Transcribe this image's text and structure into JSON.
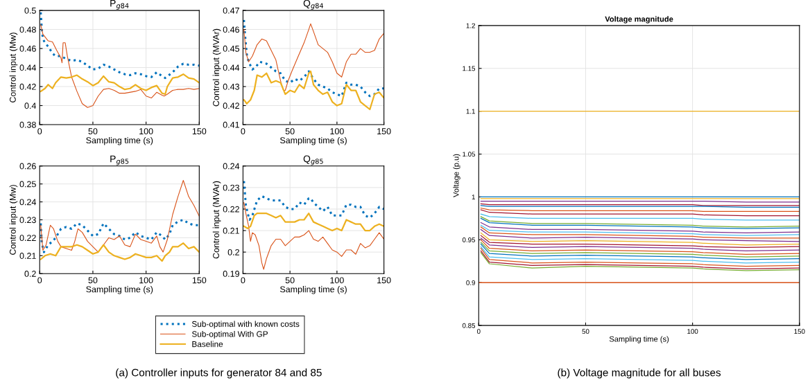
{
  "chart_data": [
    {
      "type": "line",
      "title": "P$_{g84}$",
      "xlabel": "Sampling time (s)",
      "ylabel": "Control input (Mw)",
      "xlim": [
        0,
        150
      ],
      "xticks": [
        0,
        50,
        100,
        150
      ],
      "ylim": [
        0.38,
        0.5
      ],
      "yticks": [
        0.38,
        0.4,
        0.42,
        0.44,
        0.46,
        0.48,
        0.5
      ],
      "grid": true,
      "legend": "bottom",
      "annotations": [
        "(a) Controller inputs for generator 84 and 85"
      ],
      "series": [
        {
          "name": "Sub-optimal with known costs",
          "color": "#0072bd",
          "line_style": "dotted",
          "x": [
            1,
            2,
            3,
            5,
            8,
            12,
            15,
            20,
            25,
            30,
            35,
            40,
            45,
            50,
            55,
            60,
            65,
            70,
            75,
            80,
            85,
            90,
            95,
            100,
            105,
            110,
            115,
            118,
            125,
            130,
            135,
            140,
            145,
            150
          ],
          "values": [
            0.498,
            0.48,
            0.47,
            0.466,
            0.462,
            0.455,
            0.452,
            0.452,
            0.449,
            0.447,
            0.448,
            0.446,
            0.442,
            0.438,
            0.439,
            0.443,
            0.441,
            0.438,
            0.435,
            0.433,
            0.432,
            0.434,
            0.433,
            0.431,
            0.43,
            0.435,
            0.431,
            0.429,
            0.435,
            0.441,
            0.444,
            0.443,
            0.443,
            0.442
          ]
        },
        {
          "name": "Sub-optimal With GP",
          "color": "#d95319",
          "line_style": "solid",
          "x": [
            1,
            3,
            8,
            12,
            16,
            20,
            21,
            22,
            24,
            26,
            30,
            35,
            40,
            45,
            50,
            55,
            60,
            65,
            70,
            75,
            80,
            90,
            95,
            100,
            105,
            110,
            115,
            117,
            120,
            125,
            130,
            135,
            140,
            145,
            150
          ],
          "values": [
            0.485,
            0.475,
            0.468,
            0.467,
            0.458,
            0.45,
            0.445,
            0.466,
            0.466,
            0.452,
            0.43,
            0.415,
            0.402,
            0.398,
            0.4,
            0.41,
            0.417,
            0.418,
            0.416,
            0.413,
            0.413,
            0.415,
            0.417,
            0.41,
            0.408,
            0.414,
            0.411,
            0.41,
            0.412,
            0.416,
            0.417,
            0.417,
            0.418,
            0.417,
            0.418
          ]
        },
        {
          "name": "Baseline",
          "color": "#edb120",
          "line_style": "solid",
          "x": [
            1,
            5,
            8,
            12,
            15,
            20,
            25,
            30,
            35,
            40,
            45,
            50,
            55,
            60,
            65,
            70,
            75,
            80,
            85,
            90,
            95,
            100,
            105,
            110,
            115,
            118,
            120,
            125,
            130,
            135,
            140,
            145,
            150
          ],
          "values": [
            0.415,
            0.418,
            0.422,
            0.418,
            0.424,
            0.43,
            0.429,
            0.43,
            0.432,
            0.428,
            0.425,
            0.421,
            0.424,
            0.431,
            0.425,
            0.424,
            0.42,
            0.417,
            0.418,
            0.422,
            0.418,
            0.416,
            0.419,
            0.421,
            0.413,
            0.412,
            0.42,
            0.429,
            0.43,
            0.433,
            0.429,
            0.428,
            0.424
          ]
        }
      ]
    },
    {
      "type": "line",
      "title": "Q$_{g84}$",
      "xlabel": "Sampling time (s)",
      "ylabel": "Control input (MVAr)",
      "xlim": [
        0,
        150
      ],
      "xticks": [
        0,
        50,
        100,
        150
      ],
      "ylim": [
        0.41,
        0.47
      ],
      "yticks": [
        0.41,
        0.42,
        0.43,
        0.44,
        0.45,
        0.46,
        0.47
      ],
      "grid": true,
      "series": [
        {
          "color": "#0072bd",
          "line_style": "dotted",
          "x": [
            1,
            2,
            4,
            6,
            10,
            13,
            18,
            25,
            30,
            35,
            40,
            45,
            50,
            55,
            60,
            65,
            70,
            75,
            80,
            85,
            90,
            95,
            100,
            105,
            110,
            115,
            120,
            125,
            130,
            135,
            140,
            145,
            150
          ],
          "values": [
            0.465,
            0.458,
            0.447,
            0.443,
            0.439,
            0.44,
            0.443,
            0.442,
            0.44,
            0.438,
            0.437,
            0.433,
            0.432,
            0.434,
            0.433,
            0.435,
            0.438,
            0.434,
            0.431,
            0.43,
            0.429,
            0.427,
            0.426,
            0.425,
            0.432,
            0.431,
            0.431,
            0.43,
            0.427,
            0.425,
            0.426,
            0.429,
            0.429
          ]
        },
        {
          "color": "#d95319",
          "line_style": "solid",
          "x": [
            1,
            3,
            6,
            10,
            15,
            20,
            25,
            30,
            35,
            40,
            43,
            45,
            48,
            52,
            58,
            65,
            70,
            72,
            75,
            80,
            85,
            90,
            95,
            100,
            105,
            110,
            115,
            120,
            125,
            130,
            135,
            140,
            145,
            150
          ],
          "values": [
            0.46,
            0.448,
            0.443,
            0.446,
            0.452,
            0.455,
            0.454,
            0.449,
            0.444,
            0.433,
            0.428,
            0.428,
            0.433,
            0.438,
            0.445,
            0.453,
            0.46,
            0.463,
            0.459,
            0.452,
            0.45,
            0.448,
            0.443,
            0.437,
            0.435,
            0.443,
            0.447,
            0.447,
            0.45,
            0.448,
            0.448,
            0.449,
            0.455,
            0.458
          ]
        },
        {
          "color": "#edb120",
          "line_style": "solid",
          "x": [
            1,
            4,
            8,
            12,
            15,
            20,
            25,
            30,
            35,
            40,
            45,
            50,
            55,
            60,
            65,
            70,
            72,
            75,
            80,
            85,
            90,
            95,
            100,
            105,
            110,
            115,
            120,
            125,
            130,
            135,
            140,
            145,
            150
          ],
          "values": [
            0.423,
            0.421,
            0.423,
            0.428,
            0.436,
            0.435,
            0.437,
            0.432,
            0.433,
            0.432,
            0.426,
            0.428,
            0.427,
            0.431,
            0.429,
            0.437,
            0.438,
            0.431,
            0.428,
            0.426,
            0.427,
            0.422,
            0.42,
            0.421,
            0.431,
            0.428,
            0.428,
            0.422,
            0.42,
            0.418,
            0.426,
            0.427,
            0.424
          ]
        }
      ]
    },
    {
      "type": "line",
      "title": "P$_{g85}$",
      "xlabel": "Sampling time (s)",
      "ylabel": "Control input (Mw)",
      "xlim": [
        0,
        150
      ],
      "xticks": [
        0,
        50,
        100,
        150
      ],
      "ylim": [
        0.2,
        0.26
      ],
      "yticks": [
        0.2,
        0.21,
        0.22,
        0.23,
        0.24,
        0.25,
        0.26
      ],
      "grid": true,
      "series": [
        {
          "color": "#0072bd",
          "line_style": "dotted",
          "x": [
            1,
            2,
            4,
            8,
            12,
            15,
            20,
            25,
            30,
            35,
            40,
            45,
            50,
            55,
            60,
            65,
            70,
            75,
            80,
            85,
            90,
            95,
            100,
            105,
            110,
            115,
            118,
            122,
            125,
            130,
            135,
            140,
            145,
            150
          ],
          "values": [
            0.228,
            0.217,
            0.212,
            0.216,
            0.218,
            0.22,
            0.225,
            0.226,
            0.225,
            0.228,
            0.227,
            0.224,
            0.221,
            0.222,
            0.228,
            0.225,
            0.222,
            0.221,
            0.219,
            0.22,
            0.223,
            0.221,
            0.22,
            0.219,
            0.223,
            0.221,
            0.219,
            0.222,
            0.227,
            0.229,
            0.23,
            0.228,
            0.227,
            0.227
          ]
        },
        {
          "color": "#d95319",
          "line_style": "solid",
          "x": [
            1,
            3,
            6,
            10,
            13,
            17,
            20,
            25,
            30,
            33,
            36,
            40,
            45,
            50,
            55,
            60,
            65,
            70,
            75,
            80,
            85,
            90,
            95,
            100,
            105,
            110,
            113,
            116,
            120,
            125,
            130,
            135,
            140,
            145,
            150
          ],
          "values": [
            0.227,
            0.213,
            0.216,
            0.227,
            0.225,
            0.218,
            0.215,
            0.214,
            0.213,
            0.218,
            0.225,
            0.223,
            0.218,
            0.215,
            0.212,
            0.216,
            0.22,
            0.219,
            0.221,
            0.216,
            0.215,
            0.222,
            0.219,
            0.218,
            0.217,
            0.221,
            0.215,
            0.212,
            0.219,
            0.233,
            0.243,
            0.252,
            0.243,
            0.238,
            0.232
          ]
        },
        {
          "color": "#edb120",
          "line_style": "solid",
          "x": [
            1,
            5,
            10,
            15,
            20,
            25,
            30,
            35,
            40,
            45,
            50,
            55,
            60,
            65,
            70,
            75,
            80,
            85,
            90,
            95,
            100,
            105,
            110,
            115,
            118,
            122,
            125,
            130,
            135,
            140,
            145,
            150
          ],
          "values": [
            0.208,
            0.21,
            0.211,
            0.21,
            0.215,
            0.215,
            0.215,
            0.216,
            0.215,
            0.213,
            0.211,
            0.212,
            0.216,
            0.212,
            0.21,
            0.209,
            0.208,
            0.209,
            0.211,
            0.21,
            0.209,
            0.209,
            0.21,
            0.207,
            0.21,
            0.212,
            0.215,
            0.215,
            0.217,
            0.214,
            0.215,
            0.212
          ]
        }
      ]
    },
    {
      "type": "line",
      "title": "Q$_{g85}$",
      "xlabel": "Sampling time (s)",
      "ylabel": "Control input (MVAr)",
      "xlim": [
        0,
        150
      ],
      "xticks": [
        0,
        50,
        100,
        150
      ],
      "ylim": [
        0.19,
        0.24
      ],
      "yticks": [
        0.19,
        0.2,
        0.21,
        0.22,
        0.23,
        0.24
      ],
      "grid": true,
      "series": [
        {
          "color": "#0072bd",
          "line_style": "dotted",
          "x": [
            1,
            3,
            5,
            7,
            10,
            15,
            20,
            25,
            30,
            35,
            40,
            45,
            50,
            55,
            60,
            65,
            70,
            72,
            75,
            80,
            85,
            90,
            95,
            100,
            105,
            110,
            115,
            120,
            125,
            130,
            135,
            140,
            145,
            150
          ],
          "values": [
            0.233,
            0.222,
            0.218,
            0.215,
            0.217,
            0.224,
            0.226,
            0.225,
            0.224,
            0.224,
            0.224,
            0.221,
            0.22,
            0.22,
            0.223,
            0.222,
            0.225,
            0.225,
            0.223,
            0.221,
            0.219,
            0.221,
            0.217,
            0.217,
            0.217,
            0.222,
            0.222,
            0.221,
            0.221,
            0.217,
            0.216,
            0.218,
            0.221,
            0.22
          ]
        },
        {
          "color": "#d95319",
          "line_style": "solid",
          "x": [
            1,
            3,
            6,
            8,
            10,
            13,
            17,
            20,
            22,
            25,
            30,
            35,
            40,
            45,
            50,
            55,
            60,
            65,
            70,
            75,
            80,
            85,
            90,
            95,
            100,
            105,
            110,
            115,
            120,
            125,
            130,
            135,
            140,
            145,
            150
          ],
          "values": [
            0.223,
            0.218,
            0.212,
            0.205,
            0.209,
            0.208,
            0.203,
            0.195,
            0.192,
            0.197,
            0.203,
            0.206,
            0.206,
            0.203,
            0.205,
            0.207,
            0.207,
            0.208,
            0.21,
            0.206,
            0.205,
            0.207,
            0.204,
            0.201,
            0.2,
            0.198,
            0.201,
            0.201,
            0.199,
            0.204,
            0.202,
            0.203,
            0.206,
            0.209,
            0.206
          ]
        },
        {
          "color": "#edb120",
          "line_style": "solid",
          "x": [
            1,
            5,
            8,
            12,
            15,
            20,
            25,
            30,
            35,
            40,
            45,
            50,
            55,
            60,
            65,
            70,
            75,
            80,
            85,
            90,
            95,
            100,
            105,
            110,
            115,
            120,
            125,
            130,
            135,
            140,
            145,
            150
          ],
          "values": [
            0.212,
            0.211,
            0.212,
            0.217,
            0.218,
            0.218,
            0.218,
            0.217,
            0.216,
            0.217,
            0.214,
            0.214,
            0.214,
            0.215,
            0.215,
            0.218,
            0.214,
            0.213,
            0.212,
            0.211,
            0.21,
            0.211,
            0.21,
            0.215,
            0.214,
            0.213,
            0.213,
            0.21,
            0.21,
            0.212,
            0.213,
            0.212
          ]
        }
      ]
    },
    {
      "type": "line",
      "title": "Voltage magnitude",
      "xlabel": "Sampling time (s)",
      "ylabel": "Voltage (p.u)",
      "xlim": [
        0,
        150
      ],
      "xticks": [
        0,
        50,
        100,
        150
      ],
      "ylim": [
        0.85,
        1.2
      ],
      "yticks": [
        0.85,
        0.9,
        0.95,
        1,
        1.05,
        1.1,
        1.15,
        1.2
      ],
      "grid": true,
      "annotations": [
        "(b) Voltage magnitude for all buses"
      ],
      "ref_lines": [
        {
          "axis": "y",
          "value": 1.1,
          "color": "#edb120"
        },
        {
          "axis": "y",
          "value": 0.9,
          "color": "#d95319"
        }
      ],
      "x": [
        1,
        5,
        25,
        50,
        75,
        100,
        105,
        125,
        150
      ],
      "series": [
        {
          "color": "#0072bd",
          "values": [
            1.0,
            1.0,
            1.0,
            1.0,
            1.0,
            1.0,
            1.0,
            1.0,
            1.0
          ]
        },
        {
          "color": "#edb120",
          "values": [
            0.998,
            0.998,
            0.998,
            0.998,
            0.998,
            0.998,
            0.998,
            0.998,
            0.998
          ]
        },
        {
          "color": "#7e2f8e",
          "values": [
            0.995,
            0.995,
            0.995,
            0.995,
            0.995,
            0.995,
            0.995,
            0.994,
            0.994
          ]
        },
        {
          "color": "#a2142f",
          "values": [
            0.992,
            0.991,
            0.991,
            0.991,
            0.991,
            0.991,
            0.99,
            0.99,
            0.99
          ]
        },
        {
          "color": "#0072bd",
          "values": [
            0.99,
            0.989,
            0.989,
            0.989,
            0.989,
            0.989,
            0.989,
            0.988,
            0.988
          ]
        },
        {
          "color": "#d95319",
          "values": [
            0.987,
            0.985,
            0.984,
            0.984,
            0.984,
            0.984,
            0.983,
            0.983,
            0.983
          ]
        },
        {
          "color": "#a2142f",
          "values": [
            0.985,
            0.982,
            0.98,
            0.98,
            0.98,
            0.98,
            0.979,
            0.978,
            0.978
          ]
        },
        {
          "color": "#4dbeee",
          "values": [
            0.98,
            0.977,
            0.975,
            0.975,
            0.975,
            0.975,
            0.974,
            0.973,
            0.973
          ]
        },
        {
          "color": "#77ac30",
          "values": [
            0.977,
            0.972,
            0.969,
            0.969,
            0.968,
            0.967,
            0.966,
            0.965,
            0.966
          ]
        },
        {
          "color": "#0072bd",
          "values": [
            0.975,
            0.97,
            0.967,
            0.967,
            0.966,
            0.965,
            0.964,
            0.963,
            0.964
          ]
        },
        {
          "color": "#7e2f8e",
          "values": [
            0.97,
            0.965,
            0.962,
            0.962,
            0.961,
            0.96,
            0.959,
            0.958,
            0.959
          ]
        },
        {
          "color": "#4dbeee",
          "values": [
            0.967,
            0.961,
            0.959,
            0.959,
            0.958,
            0.957,
            0.956,
            0.955,
            0.956
          ]
        },
        {
          "color": "#d95319",
          "values": [
            0.965,
            0.958,
            0.956,
            0.956,
            0.955,
            0.954,
            0.953,
            0.952,
            0.952
          ]
        },
        {
          "color": "#7e2f8e",
          "values": [
            0.962,
            0.955,
            0.952,
            0.953,
            0.952,
            0.951,
            0.95,
            0.949,
            0.948
          ]
        },
        {
          "color": "#edb120",
          "values": [
            0.958,
            0.95,
            0.948,
            0.949,
            0.948,
            0.947,
            0.946,
            0.944,
            0.945
          ]
        },
        {
          "color": "#a2142f",
          "values": [
            0.955,
            0.947,
            0.945,
            0.945,
            0.944,
            0.943,
            0.942,
            0.941,
            0.942
          ]
        },
        {
          "color": "#7e2f8e",
          "values": [
            0.952,
            0.944,
            0.941,
            0.942,
            0.941,
            0.94,
            0.939,
            0.937,
            0.938
          ]
        },
        {
          "color": "#d95319",
          "values": [
            0.95,
            0.94,
            0.937,
            0.938,
            0.937,
            0.936,
            0.935,
            0.933,
            0.934
          ]
        },
        {
          "color": "#77ac30",
          "values": [
            0.947,
            0.937,
            0.934,
            0.935,
            0.934,
            0.933,
            0.932,
            0.93,
            0.931
          ]
        },
        {
          "color": "#0072bd",
          "values": [
            0.945,
            0.934,
            0.931,
            0.932,
            0.931,
            0.93,
            0.929,
            0.927,
            0.928
          ]
        },
        {
          "color": "#4dbeee",
          "values": [
            0.942,
            0.93,
            0.927,
            0.928,
            0.927,
            0.926,
            0.925,
            0.923,
            0.924
          ]
        },
        {
          "color": "#d95319",
          "values": [
            0.94,
            0.927,
            0.923,
            0.924,
            0.923,
            0.922,
            0.921,
            0.919,
            0.92
          ]
        },
        {
          "color": "#a2142f",
          "values": [
            0.937,
            0.924,
            0.92,
            0.921,
            0.92,
            0.919,
            0.918,
            0.916,
            0.917
          ]
        },
        {
          "color": "#77ac30",
          "values": [
            0.935,
            0.922,
            0.917,
            0.919,
            0.918,
            0.917,
            0.916,
            0.914,
            0.915
          ]
        }
      ]
    }
  ]
}
